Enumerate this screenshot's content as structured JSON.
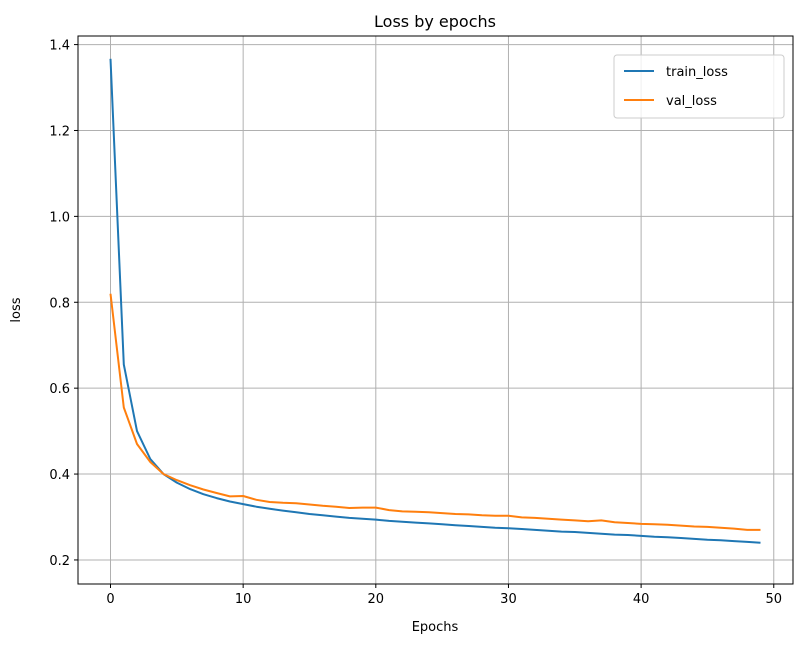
{
  "chart_data": {
    "type": "line",
    "title": "Loss by epochs",
    "xlabel": "Epochs",
    "ylabel": "loss",
    "xlim": [
      -2.45,
      51.45
    ],
    "ylim": [
      0.144,
      1.42
    ],
    "xticks": [
      0,
      10,
      20,
      30,
      40,
      50
    ],
    "yticks": [
      0.2,
      0.4,
      0.6,
      0.8,
      1.0,
      1.2,
      1.4
    ],
    "ytick_labels": [
      "0.2",
      "0.4",
      "0.6",
      "0.8",
      "1.0",
      "1.2",
      "1.4"
    ],
    "grid": true,
    "legend_position": "top-right",
    "series": [
      {
        "name": "train_loss",
        "color": "#1f77b4",
        "values": [
          1.367,
          0.655,
          0.5,
          0.435,
          0.4,
          0.38,
          0.365,
          0.353,
          0.344,
          0.336,
          0.33,
          0.324,
          0.319,
          0.315,
          0.311,
          0.307,
          0.304,
          0.301,
          0.298,
          0.296,
          0.294,
          0.291,
          0.289,
          0.287,
          0.285,
          0.283,
          0.281,
          0.279,
          0.277,
          0.275,
          0.274,
          0.272,
          0.27,
          0.268,
          0.266,
          0.265,
          0.263,
          0.261,
          0.259,
          0.258,
          0.256,
          0.254,
          0.253,
          0.251,
          0.249,
          0.247,
          0.246,
          0.244,
          0.242,
          0.24
        ]
      },
      {
        "name": "val_loss",
        "color": "#ff7f0e",
        "values": [
          0.82,
          0.555,
          0.47,
          0.428,
          0.4,
          0.386,
          0.374,
          0.364,
          0.356,
          0.348,
          0.349,
          0.34,
          0.335,
          0.333,
          0.332,
          0.329,
          0.326,
          0.324,
          0.321,
          0.322,
          0.322,
          0.316,
          0.313,
          0.312,
          0.311,
          0.309,
          0.307,
          0.306,
          0.304,
          0.303,
          0.303,
          0.299,
          0.298,
          0.296,
          0.294,
          0.292,
          0.29,
          0.292,
          0.288,
          0.286,
          0.284,
          0.283,
          0.282,
          0.28,
          0.278,
          0.277,
          0.275,
          0.273,
          0.27,
          0.27
        ]
      }
    ]
  }
}
